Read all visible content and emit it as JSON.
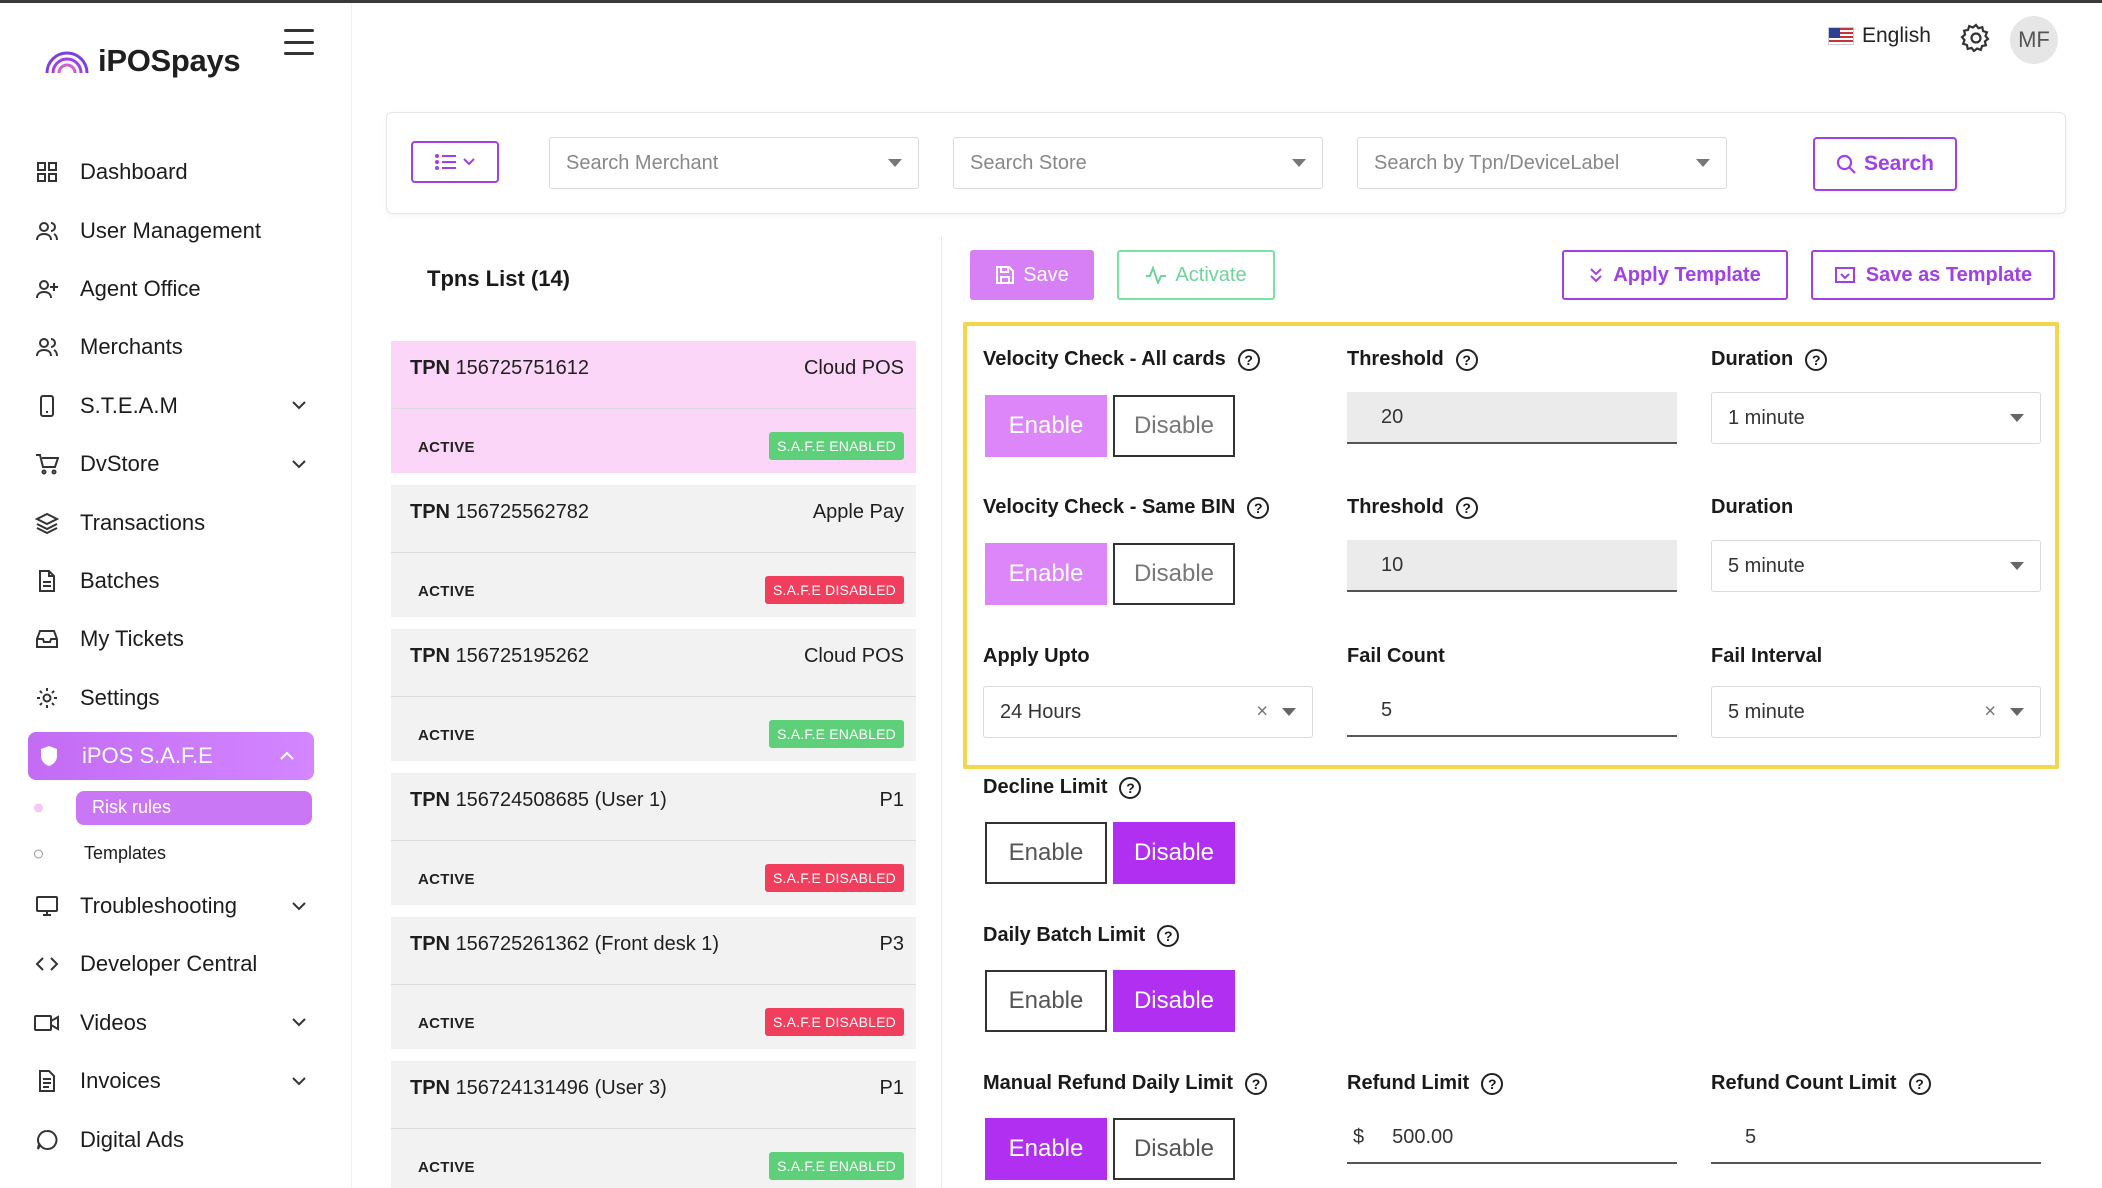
{
  "brand": {
    "name": "iPOSpays"
  },
  "header": {
    "language": "English",
    "avatar_initials": "MF"
  },
  "sidebar": {
    "items": [
      {
        "label": "Dashboard",
        "icon": "grid-icon"
      },
      {
        "label": "User Management",
        "icon": "users-icon"
      },
      {
        "label": "Agent Office",
        "icon": "user-plus-icon"
      },
      {
        "label": "Merchants",
        "icon": "users-icon"
      },
      {
        "label": "S.T.E.A.M",
        "icon": "phone-icon"
      },
      {
        "label": "DvStore",
        "icon": "cart-icon"
      },
      {
        "label": "Transactions",
        "icon": "layers-icon"
      },
      {
        "label": "Batches",
        "icon": "file-icon"
      },
      {
        "label": "My Tickets",
        "icon": "inbox-icon"
      },
      {
        "label": "Settings",
        "icon": "gear-icon"
      },
      {
        "label": "iPOS S.A.F.E",
        "icon": "shield-icon"
      },
      {
        "label": "Risk rules"
      },
      {
        "label": "Templates"
      },
      {
        "label": "Troubleshooting",
        "icon": "monitor-icon"
      },
      {
        "label": "Developer Central",
        "icon": "code-icon"
      },
      {
        "label": "Videos",
        "icon": "video-icon"
      },
      {
        "label": "Invoices",
        "icon": "document-icon"
      },
      {
        "label": "Digital Ads",
        "icon": "chat-icon"
      }
    ]
  },
  "filters": {
    "merchant_placeholder": "Search Merchant",
    "store_placeholder": "Search Store",
    "tpn_placeholder": "Search by Tpn/DeviceLabel",
    "search_label": "Search"
  },
  "tpn_list": {
    "title": "Tpns List (14)",
    "items": [
      {
        "prefix": "TPN",
        "id": "156725751612",
        "type": "Cloud POS",
        "status": "ACTIVE",
        "badge": "S.A.F.E ENABLED"
      },
      {
        "prefix": "TPN",
        "id": "156725562782",
        "type": "Apple Pay",
        "status": "ACTIVE",
        "badge": "S.A.F.E DISABLED"
      },
      {
        "prefix": "TPN",
        "id": "156725195262",
        "type": "Cloud POS",
        "status": "ACTIVE",
        "badge": "S.A.F.E ENABLED"
      },
      {
        "prefix": "TPN",
        "id": "156724508685 (User 1)",
        "type": "P1",
        "status": "ACTIVE",
        "badge": "S.A.F.E DISABLED"
      },
      {
        "prefix": "TPN",
        "id": "156725261362 (Front desk 1)",
        "type": "P3",
        "status": "ACTIVE",
        "badge": "S.A.F.E DISABLED"
      },
      {
        "prefix": "TPN",
        "id": "156724131496 (User 3)",
        "type": "P1",
        "status": "ACTIVE",
        "badge": "S.A.F.E ENABLED"
      }
    ]
  },
  "actions": {
    "save": "Save",
    "activate": "Activate",
    "apply_template": "Apply Template",
    "save_as_template": "Save as Template"
  },
  "rules": {
    "velocity_all": {
      "label": "Velocity Check - All cards",
      "enable": "Enable",
      "disable": "Disable",
      "threshold_label": "Threshold",
      "threshold": "20",
      "duration_label": "Duration",
      "duration": "1 minute"
    },
    "velocity_bin": {
      "label": "Velocity Check - Same BIN",
      "enable": "Enable",
      "disable": "Disable",
      "threshold_label": "Threshold",
      "threshold": "10",
      "duration_label": "Duration",
      "duration": "5 minute"
    },
    "apply": {
      "apply_upto_label": "Apply Upto",
      "apply_upto": "24 Hours",
      "fail_count_label": "Fail Count",
      "fail_count": "5",
      "fail_interval_label": "Fail Interval",
      "fail_interval": "5 minute"
    },
    "decline_limit": {
      "label": "Decline Limit",
      "enable": "Enable",
      "disable": "Disable"
    },
    "daily_batch": {
      "label": "Daily Batch Limit",
      "enable": "Enable",
      "disable": "Disable"
    },
    "manual_refund": {
      "label": "Manual Refund Daily Limit",
      "enable": "Enable",
      "disable": "Disable",
      "refund_limit_label": "Refund Limit",
      "currency": "$",
      "refund_limit": "500.00",
      "refund_count_label": "Refund Count Limit",
      "refund_count": "5"
    }
  },
  "colors": {
    "accent": "#a040e8",
    "enabled_badge": "#5fd07a",
    "disabled_badge": "#f03e5c",
    "highlight": "#f4d64c"
  }
}
